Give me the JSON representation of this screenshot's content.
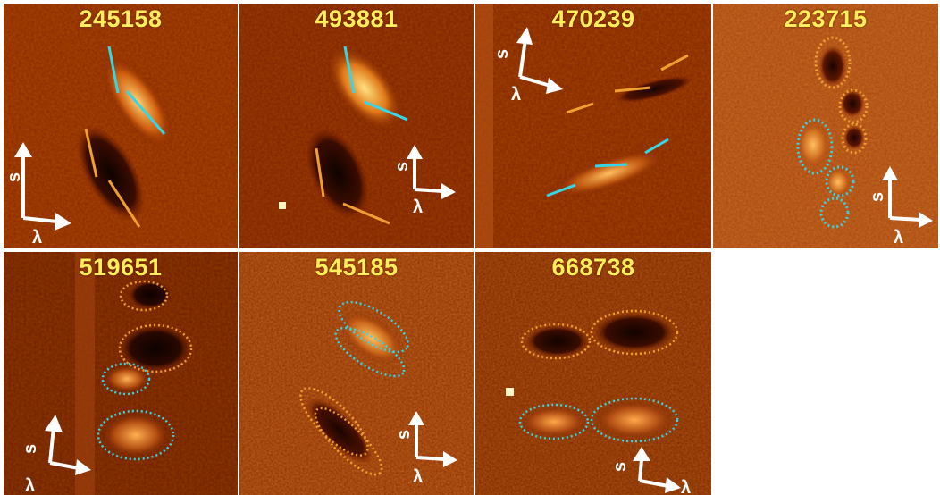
{
  "panels": [
    {
      "id": "245158"
    },
    {
      "id": "493881"
    },
    {
      "id": "470239"
    },
    {
      "id": "223715"
    },
    {
      "id": "519651"
    },
    {
      "id": "545185"
    },
    {
      "id": "668738"
    }
  ],
  "axes": {
    "spatial_label": "s",
    "wavelength_label": "λ"
  },
  "colors": {
    "background": "#7a1e00",
    "bright": "#ffc75a",
    "dark": "#1a0500",
    "cyan_marker": "#36d6e6",
    "orange_marker": "#f0a030",
    "label": "#ffef5a",
    "frame": "#3a4bd8"
  }
}
